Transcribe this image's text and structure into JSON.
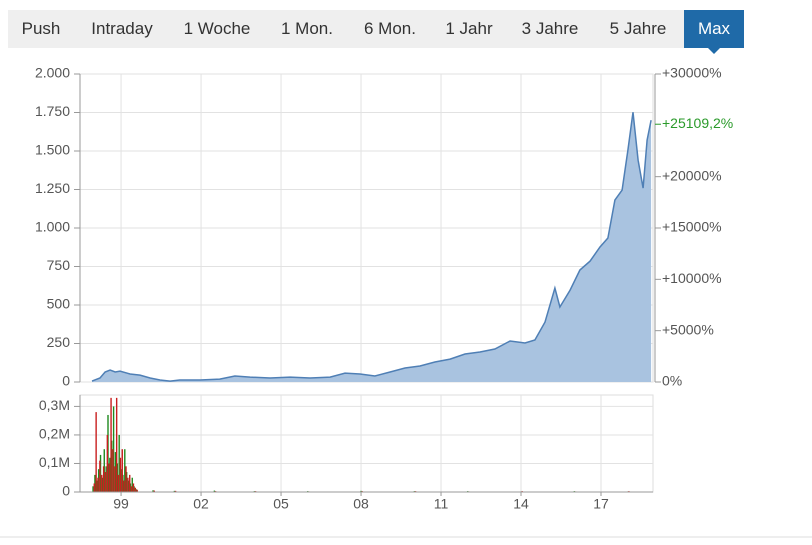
{
  "tabs": [
    "Push",
    "Intraday",
    "1 Woche",
    "1 Mon.",
    "6 Mon.",
    "1 Jahr",
    "3 Jahre",
    "5 Jahre",
    "Max"
  ],
  "active_tab": 8,
  "chart_data": [
    {
      "type": "area",
      "color": "#4f7fb5",
      "fill": "#a9c3e0",
      "x": [
        1997.91,
        1998.21,
        1998.4,
        1998.59,
        1998.78,
        1998.96,
        1999.34,
        1999.71,
        2000.09,
        2000.46,
        2000.84,
        2001.2,
        2001.96,
        2002.7,
        2003.27,
        2003.84,
        2004.59,
        2005.34,
        2006.09,
        2006.84,
        2007.4,
        2007.96,
        2008.52,
        2009.09,
        2009.65,
        2010.21,
        2010.77,
        2011.34,
        2011.9,
        2012.46,
        2013.02,
        2013.59,
        2014.15,
        2014.52,
        2014.9,
        2015.27,
        2015.46,
        2015.84,
        2016.21,
        2016.59,
        2016.96,
        2017.26,
        2017.52,
        2017.79,
        2018.01,
        2018.2,
        2018.39,
        2018.58,
        2018.73,
        2018.88
      ],
      "values": [
        6,
        26,
        65,
        78,
        65,
        71,
        52,
        45,
        26,
        13,
        6,
        13,
        13,
        19,
        39,
        32,
        26,
        32,
        26,
        32,
        58,
        52,
        39,
        65,
        91,
        104,
        130,
        149,
        182,
        195,
        214,
        266,
        253,
        273,
        389,
        610,
        487,
        597,
        727,
        785,
        876,
        935,
        1181,
        1246,
        1506,
        1752,
        1441,
        1259,
        1571,
        1700
      ],
      "xlim": [
        1997.46,
        2018.95
      ],
      "xticks": [
        {
          "value": 1999,
          "label": "99"
        },
        {
          "value": 2002,
          "label": "02"
        },
        {
          "value": 2005,
          "label": "05"
        },
        {
          "value": 2008,
          "label": "08"
        },
        {
          "value": 2011,
          "label": "11"
        },
        {
          "value": 2014,
          "label": "14"
        },
        {
          "value": 2017,
          "label": "17"
        }
      ],
      "ylim": [
        0,
        2000
      ],
      "yticks": [
        0,
        250,
        500,
        750,
        {
          "value": 1000,
          "label": "1.000"
        },
        {
          "value": 1250,
          "label": "1.250"
        },
        {
          "value": 1500,
          "label": "1.500"
        },
        {
          "value": 1750,
          "label": "1.750"
        },
        {
          "value": 2000,
          "label": "2.000"
        }
      ],
      "y2lim": [
        0,
        30000
      ],
      "y2ticks": [
        {
          "value": 0,
          "label": "0%"
        },
        {
          "value": 5000,
          "label": "+5000%"
        },
        {
          "value": 10000,
          "label": "+10000%"
        },
        {
          "value": 15000,
          "label": "+15000%"
        },
        {
          "value": 20000,
          "label": "+20000%"
        },
        {
          "value": 30000,
          "label": "+30000%"
        }
      ],
      "y2_marker": {
        "value": 25109.2,
        "label": "+25109,2%",
        "color": "#2a9a2a"
      },
      "grid": true
    },
    {
      "type": "bar",
      "x": [
        1997.95,
        1998.02,
        1998.09,
        1998.16,
        1998.23,
        1998.3,
        1998.37,
        1998.44,
        1998.51,
        1998.58,
        1998.65,
        1998.72,
        1998.79,
        1998.86,
        1998.93,
        1999.0,
        1999.07,
        1999.14,
        1999.21,
        1999.28,
        1999.35,
        1999.42,
        1999.49,
        1999.56,
        2000.2,
        2001.0,
        2002.5,
        2004.0,
        2006.0,
        2008.0,
        2010.0,
        2012.0,
        2014.0,
        2016.0,
        2018.0
      ],
      "series": [
        {
          "color": "#1f8a1f",
          "values": [
            20000,
            60000,
            40000,
            80000,
            130000,
            50000,
            150000,
            90000,
            270000,
            120000,
            180000,
            300000,
            140000,
            100000,
            200000,
            80000,
            60000,
            150000,
            70000,
            40000,
            30000,
            50000,
            20000,
            10000,
            6000,
            4000,
            5000,
            3000,
            3000,
            4000,
            3000,
            3000,
            2000,
            3000,
            2000
          ]
        },
        {
          "color": "#c81e1e",
          "values": [
            30000,
            280000,
            50000,
            110000,
            60000,
            90000,
            70000,
            200000,
            100000,
            330000,
            150000,
            90000,
            330000,
            60000,
            120000,
            150000,
            40000,
            90000,
            50000,
            60000,
            20000,
            30000,
            15000,
            8000,
            5000,
            4000,
            3000,
            3000,
            2000,
            3000,
            3000,
            2000,
            3000,
            2000,
            3000
          ]
        }
      ],
      "xlim": [
        1997.46,
        2018.95
      ],
      "xticks": [
        {
          "value": 1999,
          "label": "99"
        },
        {
          "value": 2002,
          "label": "02"
        },
        {
          "value": 2005,
          "label": "05"
        },
        {
          "value": 2008,
          "label": "08"
        },
        {
          "value": 2011,
          "label": "11"
        },
        {
          "value": 2014,
          "label": "14"
        },
        {
          "value": 2017,
          "label": "17"
        }
      ],
      "ylim": [
        0,
        340000
      ],
      "yticks": [
        0,
        {
          "value": 100000,
          "label": "0,1M"
        },
        {
          "value": 200000,
          "label": "0,2M"
        },
        {
          "value": 300000,
          "label": "0,3M"
        }
      ],
      "grid": true
    }
  ]
}
